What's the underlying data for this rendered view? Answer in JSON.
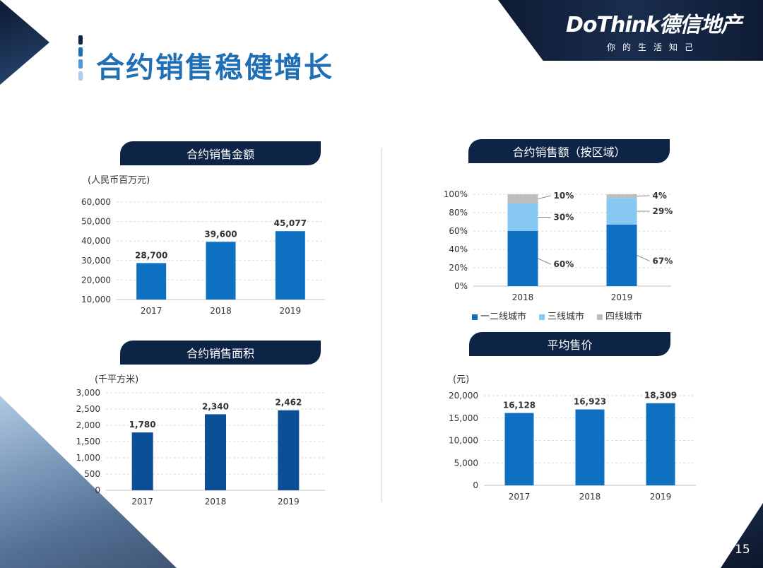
{
  "header": {
    "brand": "DoThink德信地产",
    "slogan": "你的生活知己",
    "title": "合约销售稳健增长",
    "page_number": "15"
  },
  "colors": {
    "bar_blue": "#0e70c0",
    "bar_navy": "#0c4f96",
    "light_blue": "#86c8f1",
    "gray": "#bdbdbd",
    "header_navy": "#0e2446",
    "title_blue": "#1f6fb5"
  },
  "chart_data": [
    {
      "type": "bar",
      "title": "合约销售金额",
      "unit": "(人民币百万元)",
      "categories": [
        "2017",
        "2018",
        "2019"
      ],
      "values": [
        28700,
        39600,
        45077
      ],
      "value_labels": [
        "28,700",
        "39,600",
        "45,077"
      ],
      "ylim": [
        10000,
        60000
      ],
      "yticks": [
        10000,
        20000,
        30000,
        40000,
        50000,
        60000
      ],
      "ytick_labels": [
        "10,000",
        "20,000",
        "30,000",
        "40,000",
        "50,000",
        "60,000"
      ],
      "grid": true
    },
    {
      "type": "bar",
      "stacked": true,
      "title": "合约销售额（按区域）",
      "categories": [
        "2018",
        "2019"
      ],
      "series": [
        {
          "name": "一二线城市",
          "values": [
            60,
            67
          ],
          "labels": [
            "60%",
            "67%"
          ]
        },
        {
          "name": "三线城市",
          "values": [
            30,
            29
          ],
          "labels": [
            "30%",
            "29%"
          ]
        },
        {
          "name": "四线城市",
          "values": [
            10,
            4
          ],
          "labels": [
            "10%",
            "4%"
          ]
        }
      ],
      "ylim": [
        0,
        100
      ],
      "yticks": [
        0,
        20,
        40,
        60,
        80,
        100
      ],
      "ytick_labels": [
        "0%",
        "20%",
        "40%",
        "60%",
        "80%",
        "100%"
      ],
      "legend": "bottom",
      "grid": true
    },
    {
      "type": "bar",
      "title": "合约销售面积",
      "unit": "(千平方米)",
      "categories": [
        "2017",
        "2018",
        "2019"
      ],
      "values": [
        1780,
        2340,
        2462
      ],
      "value_labels": [
        "1,780",
        "2,340",
        "2,462"
      ],
      "ylim": [
        0,
        3000
      ],
      "yticks": [
        0,
        500,
        1000,
        1500,
        2000,
        2500,
        3000
      ],
      "ytick_labels": [
        "0",
        "500",
        "1,000",
        "1,500",
        "2,000",
        "2,500",
        "3,000"
      ],
      "grid": true
    },
    {
      "type": "bar",
      "title": "平均售价",
      "unit": "(元)",
      "categories": [
        "2017",
        "2018",
        "2019"
      ],
      "values": [
        16128,
        16923,
        18309
      ],
      "value_labels": [
        "16,128",
        "16,923",
        "18,309"
      ],
      "ylim": [
        0,
        20000
      ],
      "yticks": [
        0,
        5000,
        10000,
        15000,
        20000
      ],
      "ytick_labels": [
        "0",
        "5,000",
        "10,000",
        "15,000",
        "20,000"
      ],
      "grid": true
    }
  ]
}
